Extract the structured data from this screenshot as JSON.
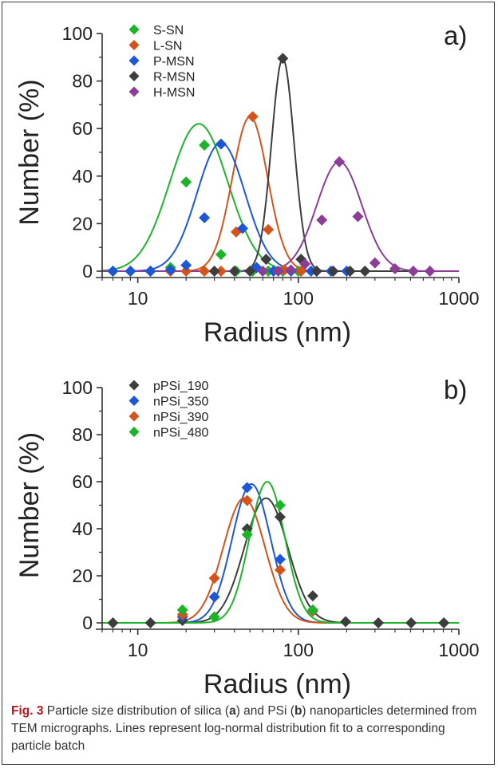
{
  "chart_data": [
    {
      "type": "scatter",
      "panel_label": "a)",
      "xlabel": "Radius (nm)",
      "ylabel": "Number (%)",
      "xscale": "log",
      "xlim": [
        6,
        1000
      ],
      "ylim": [
        0,
        100
      ],
      "xticks": [
        10,
        100,
        1000
      ],
      "xtick_labels": [
        "10",
        "100",
        "1000"
      ],
      "yticks": [
        0,
        20,
        40,
        60,
        80,
        100
      ],
      "ytick_labels": [
        "0",
        "20",
        "40",
        "60",
        "80",
        "100"
      ],
      "legend_position": "top-left",
      "series": [
        {
          "name": "S-SN",
          "color": "#1db32a",
          "x": [
            7,
            9,
            12,
            16,
            20,
            26,
            33,
            41,
            52,
            65,
            80,
            100
          ],
          "y": [
            0,
            0,
            0,
            1.5,
            37.5,
            53,
            7,
            0,
            0,
            0,
            0,
            0
          ],
          "fit": {
            "peak": 24,
            "amp": 62,
            "sigma": 0.18
          }
        },
        {
          "name": "L-SN",
          "color": "#d5531a",
          "x": [
            9,
            12,
            16,
            20,
            26,
            33,
            41,
            52,
            65,
            82,
            104,
            130
          ],
          "y": [
            0,
            0,
            0,
            0,
            0,
            0,
            16.5,
            65,
            17.5,
            0.5,
            0,
            0
          ],
          "fit": {
            "peak": 50,
            "amp": 65,
            "sigma": 0.11
          }
        },
        {
          "name": "P-MSN",
          "color": "#1c57d6",
          "x": [
            7,
            9,
            12,
            16,
            20,
            26,
            33,
            45,
            55,
            70,
            90,
            120,
            160,
            200
          ],
          "y": [
            0,
            0,
            0,
            0.5,
            2.5,
            22.5,
            53.5,
            18,
            1.5,
            0,
            0,
            0,
            0,
            0
          ],
          "fit": {
            "peak": 33,
            "amp": 54,
            "sigma": 0.15
          }
        },
        {
          "name": "R-MSN",
          "color": "#3d3d3d",
          "x": [
            30,
            40,
            50,
            63,
            80,
            104,
            130,
            165,
            210,
            260
          ],
          "y": [
            0,
            0,
            0,
            5,
            89.5,
            5,
            0,
            0,
            0,
            0
          ],
          "fit": {
            "peak": 80,
            "amp": 89.5,
            "sigma": 0.07
          }
        },
        {
          "name": "H-MSN",
          "color": "#8c3e97",
          "x": [
            60,
            75,
            90,
            110,
            140,
            180,
            235,
            300,
            400,
            520,
            660
          ],
          "y": [
            0,
            0,
            0.5,
            3,
            21.5,
            46,
            23,
            3.5,
            1,
            0,
            0
          ],
          "fit": {
            "peak": 180,
            "amp": 46,
            "sigma": 0.14
          }
        }
      ]
    },
    {
      "type": "scatter",
      "panel_label": "b)",
      "xlabel": "Radius (nm)",
      "ylabel": "Number (%)",
      "xscale": "log",
      "xlim": [
        6,
        1000
      ],
      "ylim": [
        0,
        100
      ],
      "xticks": [
        10,
        100,
        1000
      ],
      "xtick_labels": [
        "10",
        "100",
        "1000"
      ],
      "yticks": [
        0,
        20,
        40,
        60,
        80,
        100
      ],
      "ytick_labels": [
        "0",
        "20",
        "40",
        "60",
        "80",
        "100"
      ],
      "legend_position": "top-left",
      "series": [
        {
          "name": "pPSi_190",
          "color": "#3d3d3d",
          "x": [
            7,
            12,
            19,
            30,
            48,
            77,
            123,
            197,
            315,
            504,
            806
          ],
          "y": [
            0,
            0,
            1,
            2.5,
            40,
            45,
            11.5,
            0.5,
            0,
            0,
            0
          ],
          "fit": {
            "peak": 63,
            "amp": 53,
            "sigma": 0.135
          }
        },
        {
          "name": "nPSi_350",
          "color": "#1c57d6",
          "x": [
            19,
            30,
            48,
            77,
            123
          ],
          "y": [
            2.5,
            11,
            57.5,
            27,
            5
          ],
          "fit": {
            "peak": 51,
            "amp": 59,
            "sigma": 0.12
          }
        },
        {
          "name": "nPSi_390",
          "color": "#d5531a",
          "x": [
            19,
            30,
            48,
            77,
            123
          ],
          "y": [
            3.5,
            19,
            52,
            22.5,
            5
          ],
          "fit": {
            "peak": 46,
            "amp": 53,
            "sigma": 0.13
          }
        },
        {
          "name": "nPSi_480",
          "color": "#1db32a",
          "x": [
            19,
            30,
            48,
            77,
            123
          ],
          "y": [
            5.5,
            2.5,
            37.5,
            50,
            5.5
          ],
          "fit": {
            "peak": 64,
            "amp": 60,
            "sigma": 0.11
          }
        }
      ]
    }
  ],
  "caption": {
    "fig_label": "Fig. 3",
    "t1": " Particle size distribution of silica (",
    "b1": "a",
    "t2": ") and PSi (",
    "b2": "b",
    "t3": ") nanoparticles determined from TEM micrographs. Lines represent log-normal distribution fit to a corresponding particle batch"
  }
}
